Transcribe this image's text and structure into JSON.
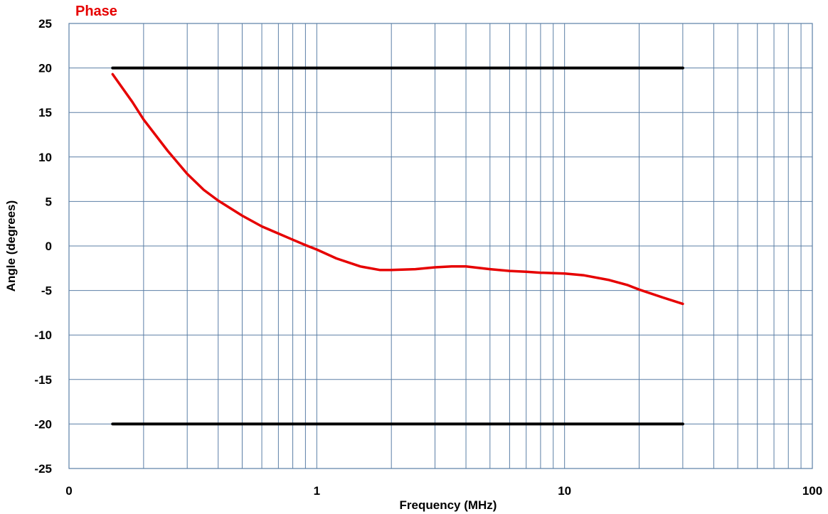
{
  "chart_data": {
    "type": "line",
    "title": "Phase",
    "xlabel": "Frequency (MHz)",
    "ylabel": "Angle (degrees)",
    "x_scale": "log",
    "xlim": [
      0.1,
      100
    ],
    "ylim": [
      -25,
      25
    ],
    "x_tick_labels": [
      "0",
      "1",
      "10",
      "100"
    ],
    "y_ticks": [
      25,
      20,
      15,
      10,
      5,
      0,
      -5,
      -10,
      -15,
      -20,
      -25
    ],
    "grid": true,
    "colors": {
      "title": "#e60000",
      "phase": "#e60000",
      "limits": "#000000",
      "grid": "#5b7fa6",
      "frame": "#5b7fa6"
    },
    "series": [
      {
        "role": "phase",
        "x": [
          0.15,
          0.18,
          0.2,
          0.25,
          0.3,
          0.35,
          0.4,
          0.5,
          0.6,
          0.7,
          0.8,
          0.9,
          1.0,
          1.2,
          1.5,
          1.8,
          2.0,
          2.5,
          3.0,
          3.5,
          4.0,
          5.0,
          6.0,
          7.0,
          8.0,
          10.0,
          12.0,
          15.0,
          18.0,
          20.0,
          25.0,
          30.0
        ],
        "y": [
          19.3,
          16.2,
          14.2,
          10.7,
          8.1,
          6.3,
          5.1,
          3.4,
          2.2,
          1.4,
          0.7,
          0.1,
          -0.4,
          -1.4,
          -2.3,
          -2.7,
          -2.7,
          -2.6,
          -2.4,
          -2.3,
          -2.3,
          -2.6,
          -2.8,
          -2.9,
          -3.0,
          -3.1,
          -3.3,
          -3.8,
          -4.4,
          -4.9,
          -5.8,
          -6.5
        ]
      },
      {
        "role": "upper-limit",
        "x": [
          0.15,
          30
        ],
        "y": [
          20,
          20
        ]
      },
      {
        "role": "lower-limit",
        "x": [
          0.15,
          30
        ],
        "y": [
          -20,
          -20
        ]
      }
    ]
  }
}
